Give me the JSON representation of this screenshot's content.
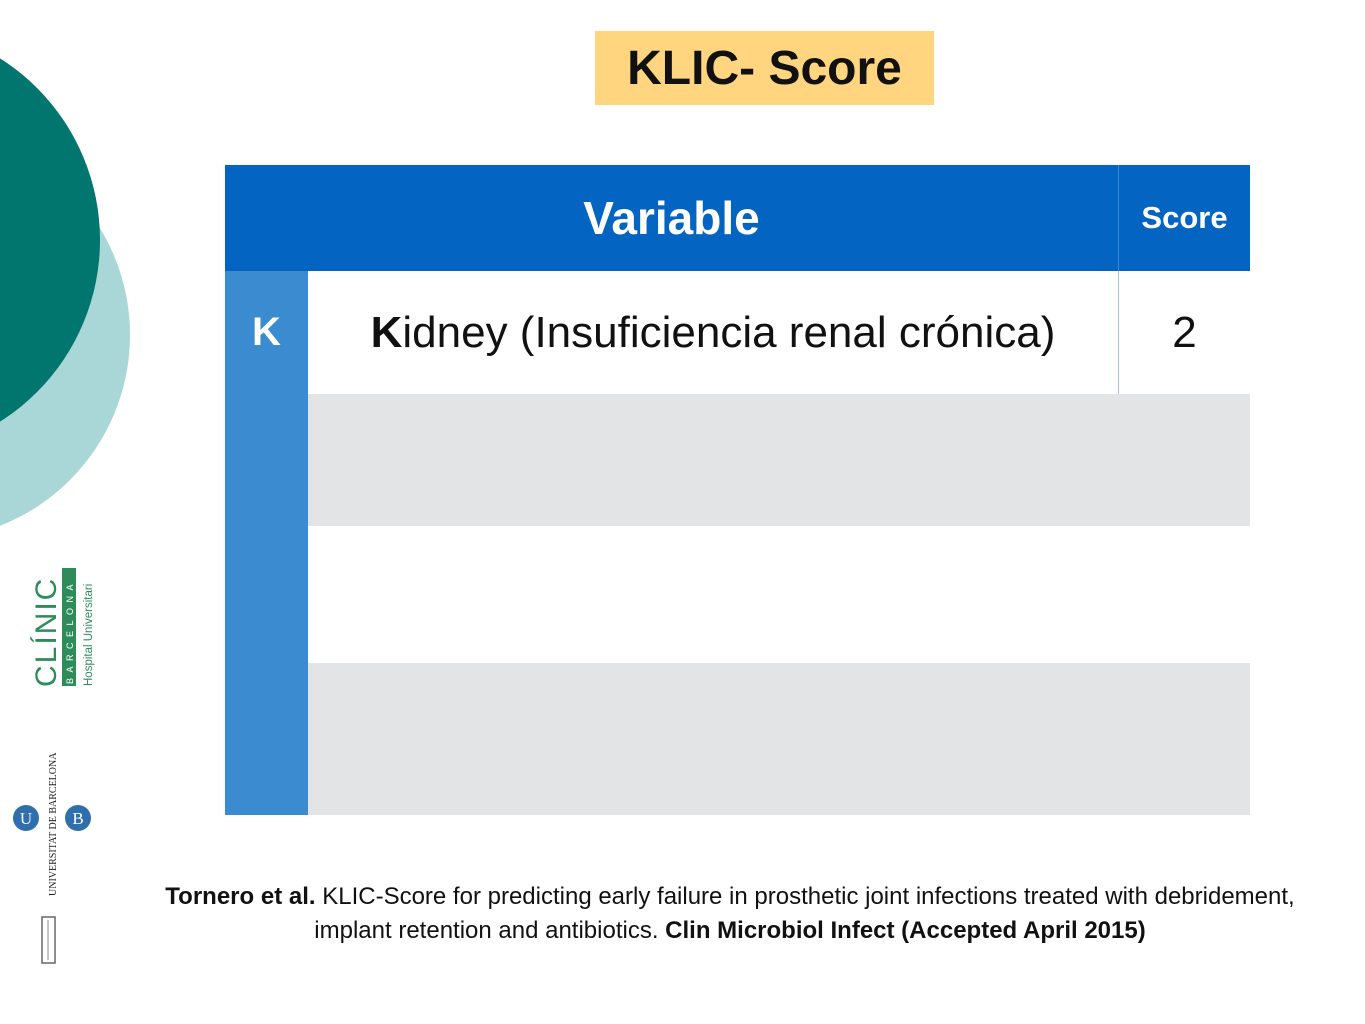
{
  "slide": {
    "title": "KLIC- Score",
    "table": {
      "header_variable": "Variable",
      "header_score": "Score",
      "rows": [
        {
          "letter": "K",
          "variable_initial": "K",
          "variable_rest": "idney (Insuficiencia renal crónica)",
          "score": "2"
        }
      ]
    },
    "citation": {
      "authors": "Tornero et al.",
      "text": " KLIC-Score for predicting early failure in prosthetic joint infections treated with debridement, implant retention and antibiotics. ",
      "journal": "Clin Microbiol Infect (Accepted April 2015)"
    },
    "logos": {
      "clinic_name": "CLÍNIC",
      "clinic_city": "BARCELONA",
      "clinic_sub": "Hospital Universitari",
      "university": "UNIVERSITAT DE BARCELONA"
    }
  },
  "colors": {
    "accent_dark_teal": "#00766e",
    "accent_light_teal": "#a9d6d6",
    "header_blue": "#0464c2",
    "letter_blue": "#3a8bd0",
    "title_bg": "#ffd67f",
    "row_gray": "#e3e4e6",
    "clinic_green": "#2e8c5a",
    "ub_blue": "#2f6fae"
  }
}
